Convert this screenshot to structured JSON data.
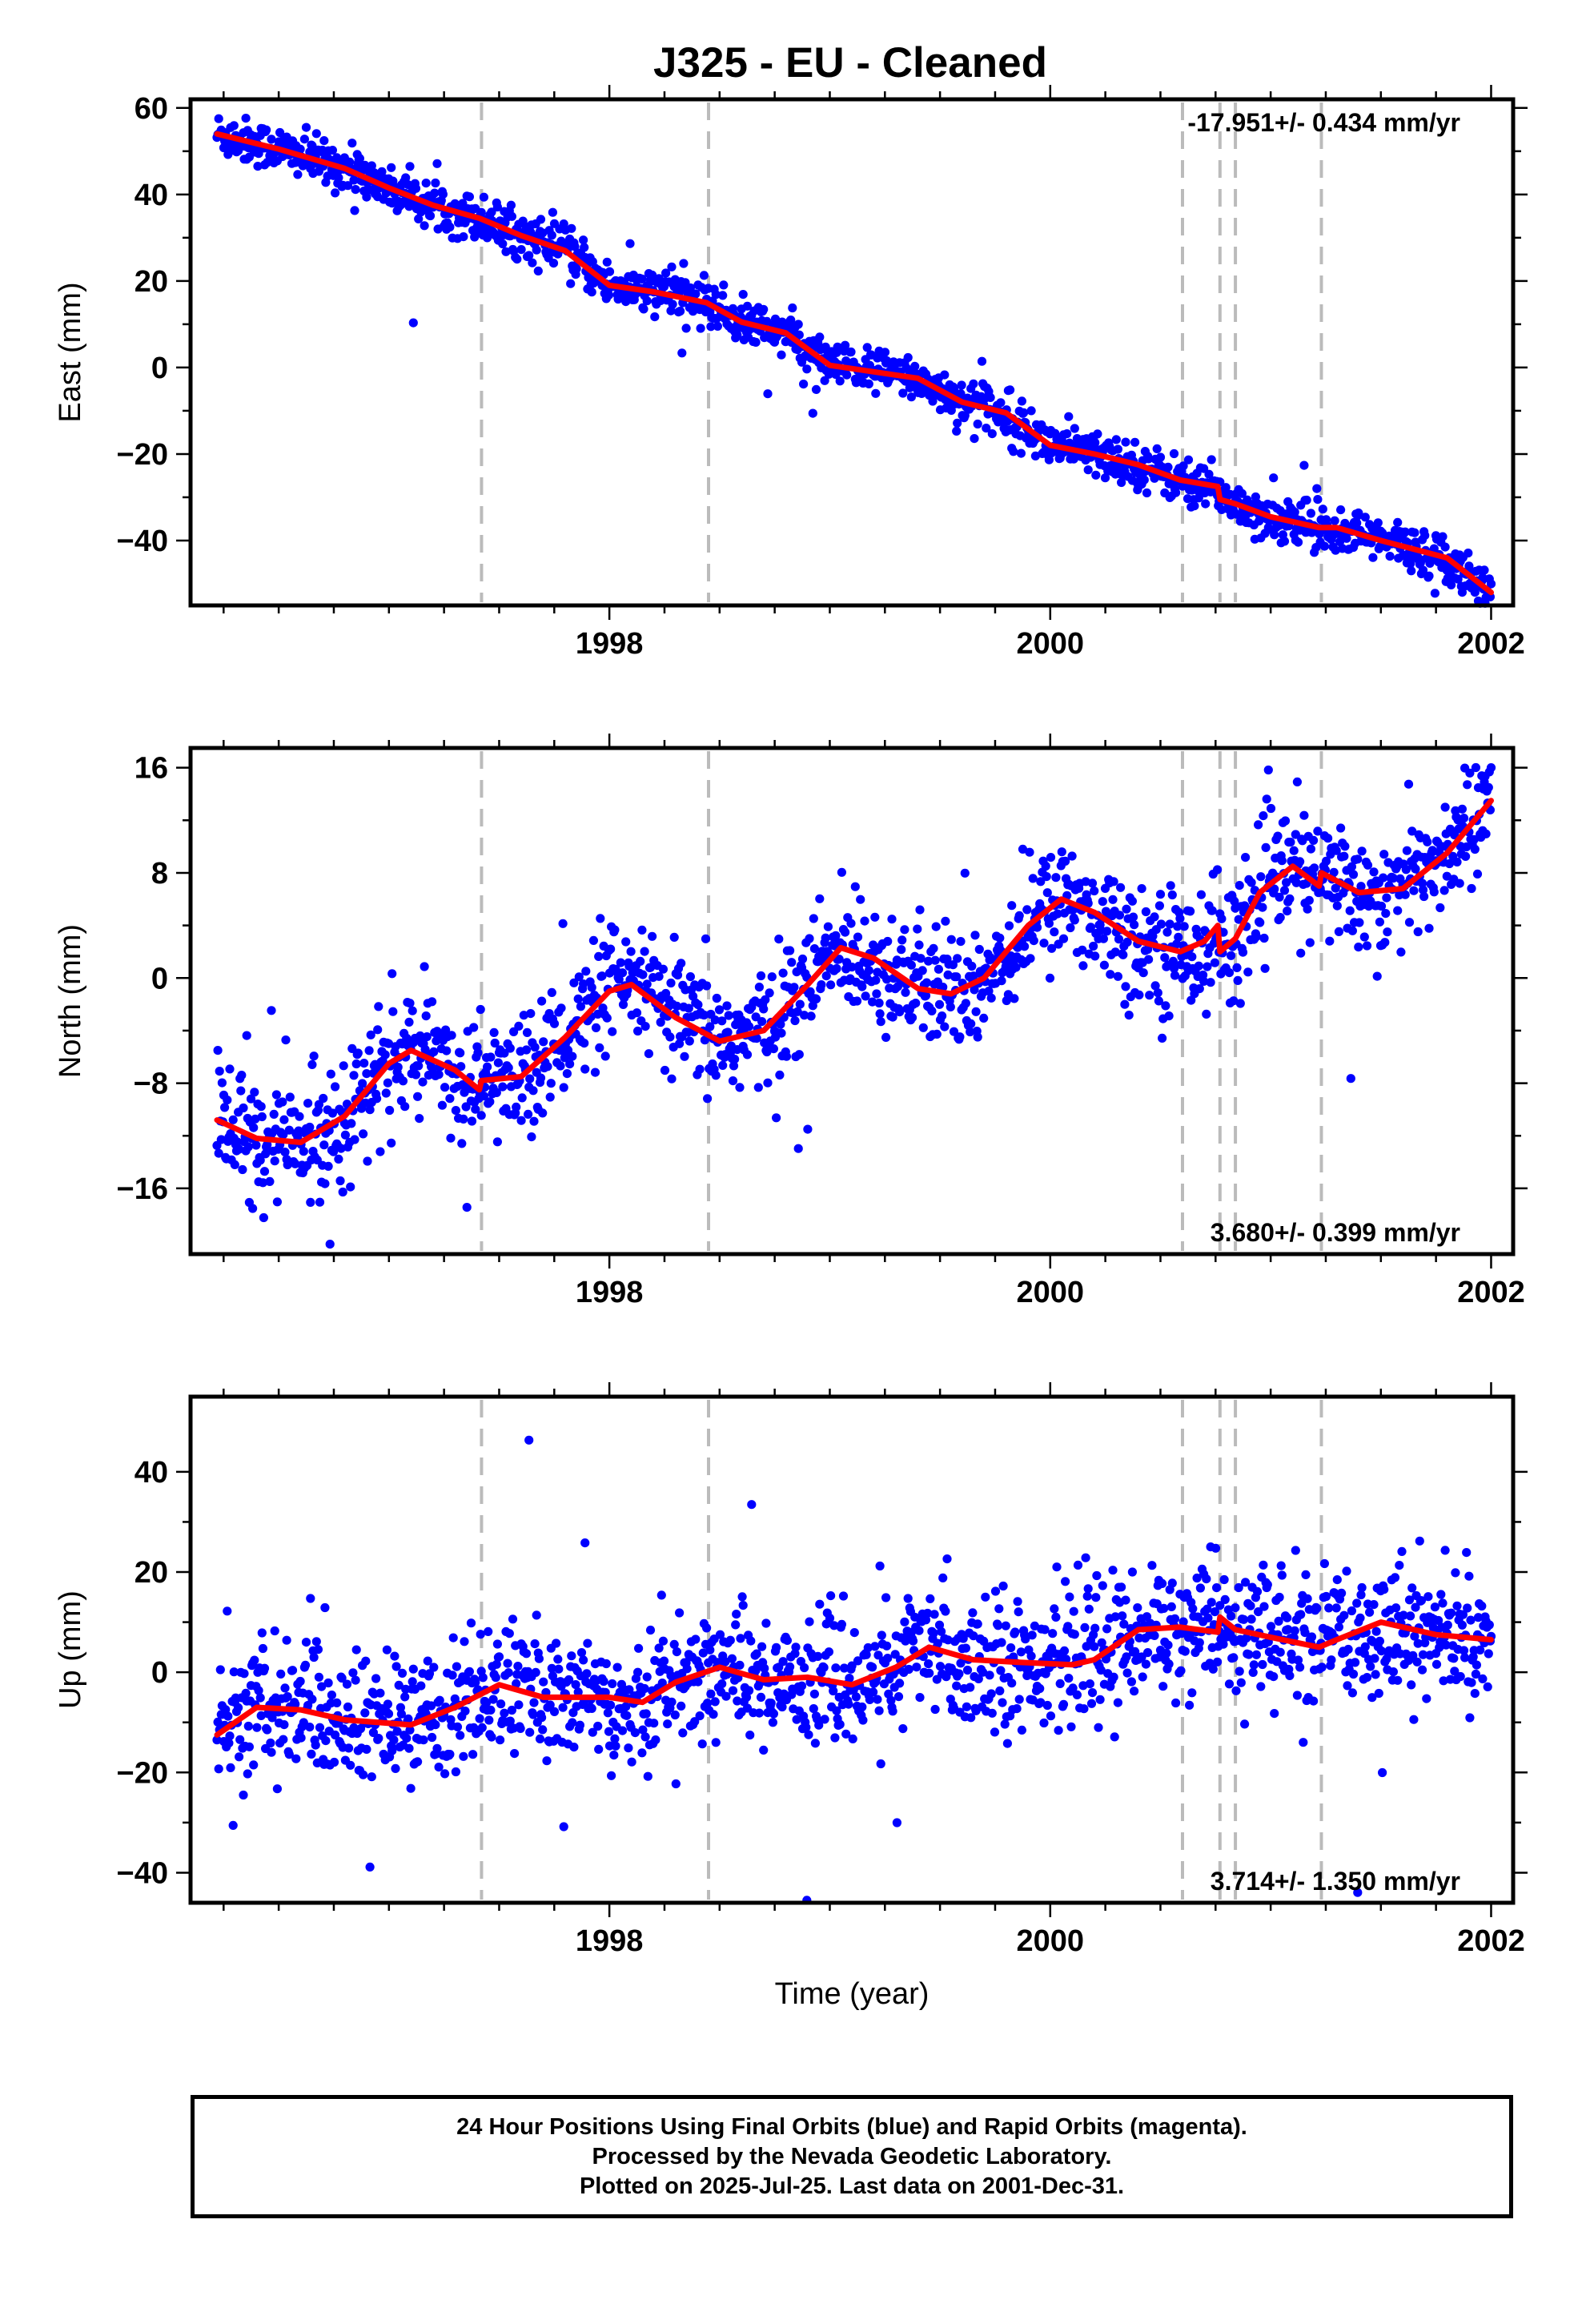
{
  "title": "J325  - EU - Cleaned",
  "footer": {
    "line1": "24 Hour Positions Using Final Orbits (blue) and Rapid Orbits (magenta).",
    "line2": "Processed by the Nevada Geodetic Laboratory.",
    "line3": "Plotted on 2025-Jul-25. Last data on 2001-Dec-31."
  },
  "colors": {
    "final_orbits": "#0000ff",
    "rapid_orbits": "#ff00ff",
    "model_fit": "#ff0000",
    "break_lines": "#bbbbbb"
  },
  "chart_data": [
    {
      "type": "scatter",
      "ylabel": "East (mm)",
      "xlabel": "",
      "xlim": [
        1996.1,
        2002.1
      ],
      "ylim": [
        -55,
        62
      ],
      "yticks": [
        -40,
        -20,
        0,
        20,
        40,
        60
      ],
      "xticks": [
        1998,
        2000,
        2002
      ],
      "velocity_label": "-17.951+/- 0.434 mm/yr",
      "velocity_position": "top-right",
      "grid": false,
      "breaks": [
        1997.42,
        1998.45,
        2000.6,
        2000.77,
        2000.84,
        2001.23
      ],
      "model": [
        {
          "x": 1996.22,
          "y": 54.0
        },
        {
          "x": 1996.5,
          "y": 50.5
        },
        {
          "x": 1996.8,
          "y": 46.0
        },
        {
          "x": 1997.0,
          "y": 41.5
        },
        {
          "x": 1997.2,
          "y": 37.5
        },
        {
          "x": 1997.41,
          "y": 34.5
        },
        {
          "x": 1997.6,
          "y": 30.5
        },
        {
          "x": 1997.8,
          "y": 27.0
        },
        {
          "x": 1998.0,
          "y": 19.0
        },
        {
          "x": 1998.2,
          "y": 17.5
        },
        {
          "x": 1998.44,
          "y": 15.0
        },
        {
          "x": 1998.6,
          "y": 10.5
        },
        {
          "x": 1998.8,
          "y": 8.0
        },
        {
          "x": 1999.0,
          "y": 0.5
        },
        {
          "x": 1999.2,
          "y": -1.0
        },
        {
          "x": 1999.4,
          "y": -2.5
        },
        {
          "x": 1999.6,
          "y": -8.0
        },
        {
          "x": 1999.8,
          "y": -10.5
        },
        {
          "x": 2000.0,
          "y": -18.0
        },
        {
          "x": 2000.2,
          "y": -20.0
        },
        {
          "x": 2000.4,
          "y": -22.5
        },
        {
          "x": 2000.59,
          "y": -26.0
        },
        {
          "x": 2000.76,
          "y": -27.5
        },
        {
          "x": 2000.77,
          "y": -30.5
        },
        {
          "x": 2000.84,
          "y": -31.5
        },
        {
          "x": 2001.0,
          "y": -34.5
        },
        {
          "x": 2001.22,
          "y": -37.0
        },
        {
          "x": 2001.3,
          "y": -37.0
        },
        {
          "x": 2001.5,
          "y": -40.0
        },
        {
          "x": 2001.8,
          "y": -44.0
        },
        {
          "x": 2002.0,
          "y": -52.0
        }
      ],
      "scatter_spread": 2.6
    },
    {
      "type": "scatter",
      "ylabel": "North (mm)",
      "xlabel": "",
      "xlim": [
        1996.1,
        2002.1
      ],
      "ylim": [
        -21,
        17.5
      ],
      "yticks": [
        -16,
        -8,
        0,
        8,
        16
      ],
      "xticks": [
        1998,
        2000,
        2002
      ],
      "velocity_label": "3.680+/- 0.399 mm/yr",
      "velocity_position": "bottom-right",
      "grid": false,
      "breaks": [
        1997.42,
        1998.45,
        2000.6,
        2000.77,
        2000.84,
        2001.23
      ],
      "model": [
        {
          "x": 1996.22,
          "y": -10.8
        },
        {
          "x": 1996.4,
          "y": -12.2
        },
        {
          "x": 1996.6,
          "y": -12.5
        },
        {
          "x": 1996.8,
          "y": -10.5
        },
        {
          "x": 1997.0,
          "y": -6.5
        },
        {
          "x": 1997.1,
          "y": -5.5
        },
        {
          "x": 1997.3,
          "y": -7.0
        },
        {
          "x": 1997.41,
          "y": -8.5
        },
        {
          "x": 1997.42,
          "y": -7.8
        },
        {
          "x": 1997.6,
          "y": -7.5
        },
        {
          "x": 1997.8,
          "y": -4.5
        },
        {
          "x": 1998.0,
          "y": -1.0
        },
        {
          "x": 1998.1,
          "y": -0.5
        },
        {
          "x": 1998.3,
          "y": -3.0
        },
        {
          "x": 1998.5,
          "y": -4.8
        },
        {
          "x": 1998.7,
          "y": -4.0
        },
        {
          "x": 1998.9,
          "y": -0.5
        },
        {
          "x": 1999.05,
          "y": 2.3
        },
        {
          "x": 1999.2,
          "y": 1.5
        },
        {
          "x": 1999.4,
          "y": -0.8
        },
        {
          "x": 1999.55,
          "y": -1.2
        },
        {
          "x": 1999.7,
          "y": 0.0
        },
        {
          "x": 1999.9,
          "y": 4.0
        },
        {
          "x": 2000.05,
          "y": 6.0
        },
        {
          "x": 2000.2,
          "y": 5.0
        },
        {
          "x": 2000.4,
          "y": 2.8
        },
        {
          "x": 2000.59,
          "y": 2.0
        },
        {
          "x": 2000.7,
          "y": 2.8
        },
        {
          "x": 2000.76,
          "y": 4.0
        },
        {
          "x": 2000.77,
          "y": 2.0
        },
        {
          "x": 2000.84,
          "y": 3.0
        },
        {
          "x": 2000.95,
          "y": 6.5
        },
        {
          "x": 2001.1,
          "y": 8.5
        },
        {
          "x": 2001.22,
          "y": 7.0
        },
        {
          "x": 2001.23,
          "y": 8.0
        },
        {
          "x": 2001.4,
          "y": 6.5
        },
        {
          "x": 2001.6,
          "y": 6.8
        },
        {
          "x": 2001.8,
          "y": 9.5
        },
        {
          "x": 2002.0,
          "y": 13.5
        }
      ],
      "scatter_spread": 2.3
    },
    {
      "type": "scatter",
      "ylabel": "Up (mm)",
      "xlabel": "Time (year)",
      "xlim": [
        1996.1,
        2002.1
      ],
      "ylim": [
        -46,
        55
      ],
      "yticks": [
        -40,
        -20,
        0,
        20,
        40
      ],
      "xticks": [
        1998,
        2000,
        2002
      ],
      "velocity_label": "3.714+/- 1.350 mm/yr",
      "velocity_position": "bottom-right",
      "grid": false,
      "breaks": [
        1997.42,
        1998.45,
        2000.6,
        2000.77,
        2000.84,
        2001.23
      ],
      "model": [
        {
          "x": 1996.22,
          "y": -12.5
        },
        {
          "x": 1996.4,
          "y": -7.0
        },
        {
          "x": 1996.6,
          "y": -7.5
        },
        {
          "x": 1996.8,
          "y": -9.5
        },
        {
          "x": 1997.1,
          "y": -10.5
        },
        {
          "x": 1997.3,
          "y": -7.0
        },
        {
          "x": 1997.5,
          "y": -2.5
        },
        {
          "x": 1997.7,
          "y": -5.0
        },
        {
          "x": 1998.0,
          "y": -5.0
        },
        {
          "x": 1998.15,
          "y": -6.0
        },
        {
          "x": 1998.3,
          "y": -2.0
        },
        {
          "x": 1998.5,
          "y": 1.0
        },
        {
          "x": 1998.7,
          "y": -1.5
        },
        {
          "x": 1998.9,
          "y": -1.0
        },
        {
          "x": 1999.1,
          "y": -2.5
        },
        {
          "x": 1999.3,
          "y": 1.0
        },
        {
          "x": 1999.45,
          "y": 5.0
        },
        {
          "x": 1999.65,
          "y": 2.5
        },
        {
          "x": 1999.85,
          "y": 2.0
        },
        {
          "x": 2000.1,
          "y": 1.5
        },
        {
          "x": 2000.2,
          "y": 2.5
        },
        {
          "x": 2000.4,
          "y": 8.5
        },
        {
          "x": 2000.59,
          "y": 9.0
        },
        {
          "x": 2000.76,
          "y": 8.0
        },
        {
          "x": 2000.77,
          "y": 11.0
        },
        {
          "x": 2000.84,
          "y": 8.5
        },
        {
          "x": 2001.0,
          "y": 7.0
        },
        {
          "x": 2001.22,
          "y": 5.0
        },
        {
          "x": 2001.3,
          "y": 6.5
        },
        {
          "x": 2001.5,
          "y": 10.0
        },
        {
          "x": 2001.75,
          "y": 7.5
        },
        {
          "x": 2002.0,
          "y": 6.5
        }
      ],
      "scatter_spread": 6.5
    }
  ]
}
